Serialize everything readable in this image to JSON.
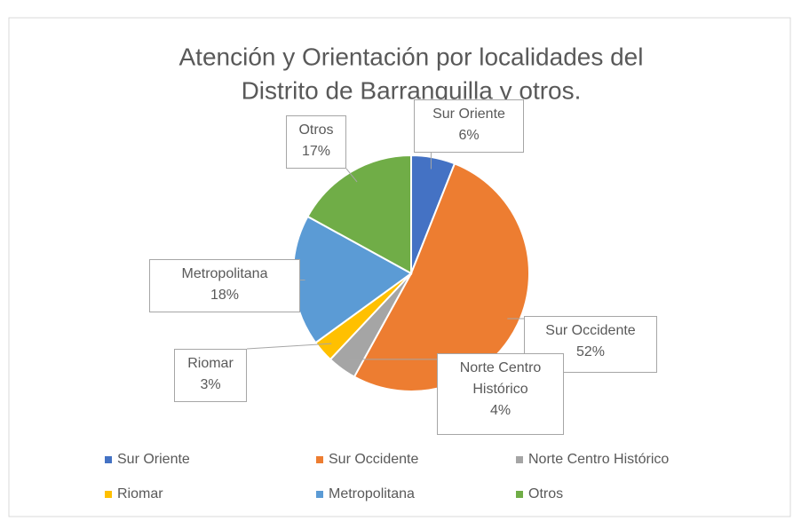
{
  "chart_data": {
    "type": "pie",
    "title": [
      "Atención y Orientación por localidades del",
      "Distrito de Barranquilla y otros."
    ],
    "categories": [
      "Sur Oriente",
      "Sur Occidente",
      "Norte Centro Histórico",
      "Riomar",
      "Metropolitana",
      "Otros"
    ],
    "values": [
      6,
      52,
      4,
      3,
      18,
      17
    ],
    "value_labels": [
      "6%",
      "52%",
      "4%",
      "3%",
      "18%",
      "17%"
    ],
    "colors": [
      "#4472c4",
      "#ed7d31",
      "#a5a5a5",
      "#ffc000",
      "#5b9bd5",
      "#70ad47"
    ],
    "legend": "bottom"
  }
}
